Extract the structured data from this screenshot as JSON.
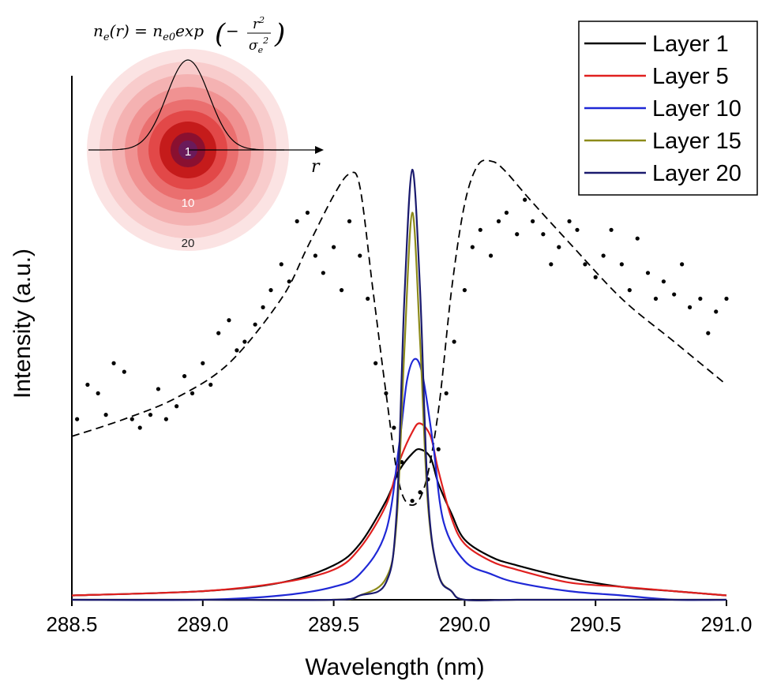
{
  "chart_data": {
    "type": "line",
    "xlabel": "Wavelength (nm)",
    "ylabel": "Intensity (a.u.)",
    "xlim": [
      288.5,
      291.0
    ],
    "ylim": [
      0,
      1.12
    ],
    "x_ticks": [
      "288.5",
      "289.0",
      "289.5",
      "290.0",
      "290.5",
      "291.0"
    ],
    "y_ticks_shown": false,
    "legend_position": "top-right",
    "series": [
      {
        "name": "Layer 1",
        "color": "#000000",
        "style": "solid",
        "x": [
          288.5,
          289.0,
          289.3,
          289.5,
          289.6,
          289.7,
          289.75,
          289.8,
          289.83,
          289.87,
          289.9,
          289.95,
          290.0,
          290.1,
          290.2,
          290.4,
          290.6,
          290.8,
          291.0
        ],
        "y": [
          0.01,
          0.02,
          0.04,
          0.08,
          0.13,
          0.23,
          0.3,
          0.34,
          0.35,
          0.33,
          0.27,
          0.2,
          0.14,
          0.1,
          0.08,
          0.05,
          0.03,
          0.02,
          0.01
        ]
      },
      {
        "name": "Layer 5",
        "color": "#e0201f",
        "style": "solid",
        "x": [
          288.5,
          289.0,
          289.3,
          289.5,
          289.6,
          289.7,
          289.75,
          289.8,
          289.83,
          289.87,
          289.9,
          289.95,
          290.0,
          290.1,
          290.2,
          290.4,
          290.6,
          290.8,
          291.0
        ],
        "y": [
          0.01,
          0.02,
          0.04,
          0.07,
          0.12,
          0.22,
          0.32,
          0.39,
          0.41,
          0.38,
          0.3,
          0.19,
          0.13,
          0.09,
          0.07,
          0.04,
          0.03,
          0.02,
          0.01
        ]
      },
      {
        "name": "Layer 10",
        "color": "#1f28d6",
        "style": "solid",
        "x": [
          288.5,
          289.0,
          289.3,
          289.5,
          289.6,
          289.7,
          289.75,
          289.78,
          289.81,
          289.84,
          289.88,
          289.92,
          290.0,
          290.1,
          290.2,
          290.4,
          290.6,
          290.8,
          291.0
        ],
        "y": [
          0.0,
          0.0,
          0.01,
          0.03,
          0.06,
          0.16,
          0.36,
          0.51,
          0.56,
          0.52,
          0.36,
          0.18,
          0.09,
          0.06,
          0.04,
          0.02,
          0.01,
          0.0,
          0.0
        ]
      },
      {
        "name": "Layer 15",
        "color": "#8c8a1a",
        "style": "solid",
        "x": [
          288.5,
          289.0,
          289.5,
          289.6,
          289.7,
          289.74,
          289.77,
          289.8,
          289.83,
          289.86,
          289.9,
          289.95,
          290.0,
          290.2,
          290.5,
          291.0
        ],
        "y": [
          0.0,
          0.0,
          0.0,
          0.01,
          0.05,
          0.18,
          0.58,
          0.9,
          0.6,
          0.22,
          0.06,
          0.02,
          0.0,
          0.0,
          0.0,
          0.0
        ]
      },
      {
        "name": "Layer 20",
        "color": "#1a1a6e",
        "style": "solid",
        "x": [
          288.5,
          289.0,
          289.5,
          289.6,
          289.7,
          289.74,
          289.77,
          289.8,
          289.83,
          289.86,
          289.9,
          289.95,
          290.0,
          290.2,
          290.5,
          291.0
        ],
        "y": [
          0.0,
          0.0,
          0.0,
          0.01,
          0.04,
          0.2,
          0.7,
          1.0,
          0.72,
          0.24,
          0.06,
          0.02,
          0.0,
          0.0,
          0.0,
          0.0
        ]
      },
      {
        "name": "",
        "color": "#000000",
        "style": "dashed",
        "x": [
          288.5,
          288.7,
          288.9,
          289.1,
          289.3,
          289.4,
          289.5,
          289.56,
          289.6,
          289.65,
          289.7,
          289.75,
          289.8,
          289.85,
          289.9,
          289.95,
          290.0,
          290.05,
          290.1,
          290.15,
          290.25,
          290.4,
          290.6,
          290.8,
          291.0
        ],
        "y": [
          0.38,
          0.42,
          0.47,
          0.55,
          0.7,
          0.82,
          0.94,
          0.99,
          0.96,
          0.72,
          0.48,
          0.27,
          0.22,
          0.27,
          0.44,
          0.72,
          0.92,
          1.01,
          1.02,
          1.0,
          0.93,
          0.83,
          0.7,
          0.6,
          0.5
        ]
      }
    ],
    "scatter_points": {
      "color": "#000000",
      "x": [
        288.52,
        288.56,
        288.6,
        288.63,
        288.66,
        288.7,
        288.73,
        288.76,
        288.8,
        288.83,
        288.86,
        288.9,
        288.93,
        288.96,
        289.0,
        289.03,
        289.06,
        289.1,
        289.13,
        289.16,
        289.2,
        289.23,
        289.26,
        289.3,
        289.33,
        289.36,
        289.4,
        289.43,
        289.46,
        289.5,
        289.53,
        289.56,
        289.6,
        289.63,
        289.66,
        289.7,
        289.73,
        289.76,
        289.8,
        289.83,
        289.86,
        289.9,
        289.93,
        289.96,
        290.0,
        290.03,
        290.06,
        290.1,
        290.13,
        290.16,
        290.2,
        290.23,
        290.26,
        290.3,
        290.33,
        290.36,
        290.4,
        290.43,
        290.46,
        290.5,
        290.53,
        290.56,
        290.6,
        290.63,
        290.66,
        290.7,
        290.73,
        290.76,
        290.8,
        290.83,
        290.86,
        290.9,
        290.93,
        290.96,
        291.0
      ],
      "y": [
        0.42,
        0.5,
        0.48,
        0.43,
        0.55,
        0.53,
        0.42,
        0.4,
        0.43,
        0.49,
        0.42,
        0.45,
        0.52,
        0.48,
        0.55,
        0.5,
        0.62,
        0.65,
        0.58,
        0.6,
        0.64,
        0.68,
        0.72,
        0.78,
        0.74,
        0.88,
        0.9,
        0.8,
        0.76,
        0.82,
        0.72,
        0.88,
        0.8,
        0.7,
        0.55,
        0.48,
        0.4,
        0.32,
        0.23,
        0.25,
        0.28,
        0.35,
        0.48,
        0.6,
        0.72,
        0.82,
        0.86,
        0.8,
        0.88,
        0.9,
        0.85,
        0.93,
        0.88,
        0.85,
        0.78,
        0.82,
        0.88,
        0.86,
        0.78,
        0.75,
        0.8,
        0.86,
        0.78,
        0.72,
        0.84,
        0.76,
        0.7,
        0.74,
        0.71,
        0.78,
        0.68,
        0.7,
        0.62,
        0.67,
        0.7
      ]
    }
  },
  "inset": {
    "formula_lhs": "n",
    "formula_text": "n_e(r) = n_e0 exp(−r²/σ_e²)",
    "axis_label": "r",
    "ring_labels": [
      "1",
      "10",
      "20"
    ],
    "ring_colors": [
      "#fbe3e3",
      "#f8cccc",
      "#f4b2b2",
      "#f09292",
      "#ea6f6f",
      "#e24848",
      "#c51b1b",
      "#8a1030",
      "#6a1a5a"
    ]
  }
}
